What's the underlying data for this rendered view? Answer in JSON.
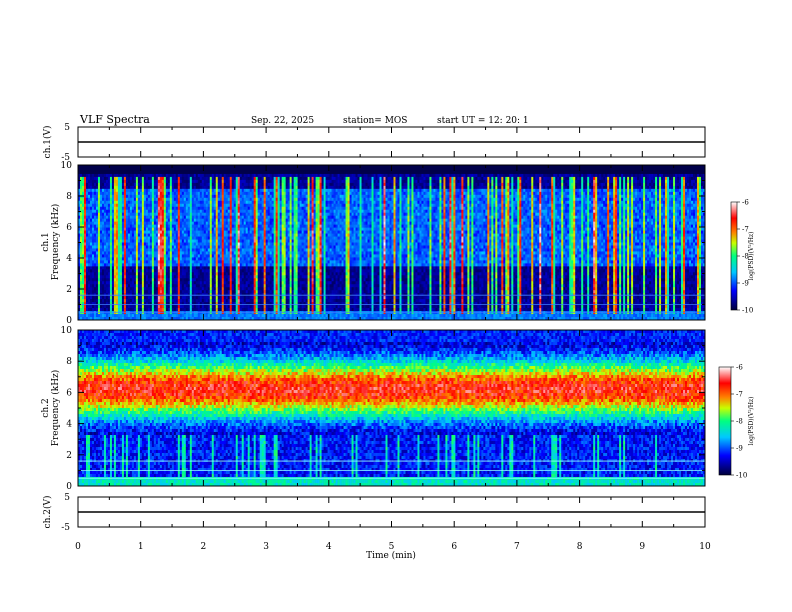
{
  "header": {
    "title": "VLF Spectra",
    "date": "Sep. 22, 2025",
    "station": "station= MOS",
    "start_ut": "start  UT =   12: 20: 1"
  },
  "chart_data": [
    {
      "type": "line",
      "panel": "ch1-voltage",
      "ylabel": "ch.1(V)",
      "ylim": [
        -5,
        5
      ],
      "ytick_labels": [
        "-5",
        "5"
      ],
      "series": [
        {
          "name": "ch.1",
          "constant_value": 0
        }
      ]
    },
    {
      "type": "heatmap",
      "panel": "ch1-spectrogram",
      "ylabel_line1": "ch.1",
      "ylabel_line2": "Frequency  (kHz)",
      "ylim": [
        0,
        10
      ],
      "ytick_labels": [
        "0",
        "2",
        "4",
        "6",
        "8",
        "10"
      ],
      "colorbar": {
        "label": "log(PSD)(V²/Hz)",
        "range": [
          -10,
          -6
        ],
        "tick_labels": [
          "-10",
          "-9",
          "-8",
          "-7",
          "-6"
        ]
      },
      "structure": "broadband vertical impulsive bursts (sferics) across 0.5–9 kHz, weak background, horizontal transmitter lines near 0.5, 1.0 and 1.6 kHz"
    },
    {
      "type": "heatmap",
      "panel": "ch2-spectrogram",
      "ylabel_line1": "ch.2",
      "ylabel_line2": "Frequency  (kHz)",
      "ylim": [
        0,
        10
      ],
      "ytick_labels": [
        "0",
        "2",
        "4",
        "6",
        "8",
        "10"
      ],
      "colorbar": {
        "label": "log(PSD)(V²/Hz)",
        "range": [
          -10,
          -6
        ],
        "tick_labels": [
          "-10",
          "-9",
          "-8",
          "-7",
          "-6"
        ]
      },
      "structure": "intense broad band peaking around 5–7 kHz throughout the record, with horizontal lines near 0.5, 1.0 and 1.6 kHz"
    },
    {
      "type": "line",
      "panel": "ch2-voltage",
      "ylabel": "ch.2(V)",
      "ylim": [
        -5,
        5
      ],
      "ytick_labels": [
        "-5",
        "5"
      ],
      "series": [
        {
          "name": "ch.2",
          "constant_value": 0
        }
      ]
    }
  ],
  "x_axis": {
    "label": "Time  (min)",
    "range": [
      0,
      10
    ],
    "tick_labels": [
      "0",
      "1",
      "2",
      "3",
      "4",
      "5",
      "6",
      "7",
      "8",
      "9",
      "10"
    ]
  }
}
